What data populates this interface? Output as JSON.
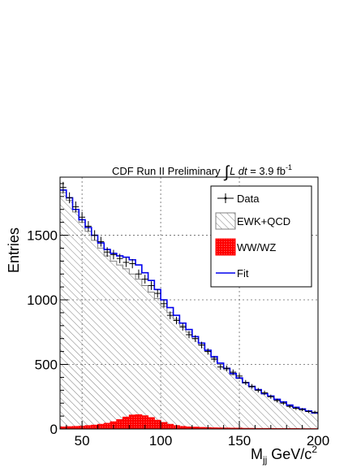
{
  "chart_data": {
    "type": "line",
    "title": {
      "prefix": "CDF Run II Preliminary",
      "integral": "∫",
      "expr": "L dt",
      "value": " = 3.9 fb",
      "exp": "-1"
    },
    "xlabel": {
      "main": "M",
      "sub": "jj",
      "unit": " GeV/c",
      "sup": "2"
    },
    "ylabel": "Entries",
    "xlim": [
      36,
      200
    ],
    "ylim": [
      0,
      1950
    ],
    "xticks": [
      50,
      100,
      150,
      200
    ],
    "yticks": [
      0,
      500,
      1000,
      1500
    ],
    "grid": true,
    "legend_position": "top-right",
    "bin_edges": [
      36,
      40,
      44,
      48,
      52,
      56,
      60,
      64,
      68,
      72,
      76,
      80,
      84,
      88,
      92,
      96,
      100,
      104,
      108,
      112,
      116,
      120,
      124,
      128,
      132,
      136,
      140,
      144,
      148,
      152,
      156,
      160,
      164,
      168,
      172,
      176,
      180,
      184,
      188,
      192,
      196,
      200
    ],
    "series": [
      {
        "name": "Data",
        "style": "points",
        "color": "#000000",
        "values": [
          1870,
          1790,
          1720,
          1640,
          1570,
          1500,
          1450,
          1370,
          1350,
          1320,
          1290,
          1280,
          1200,
          1160,
          1110,
          1050,
          970,
          880,
          840,
          790,
          730,
          700,
          650,
          600,
          540,
          480,
          470,
          440,
          410,
          360,
          330,
          300,
          280,
          250,
          220,
          200,
          175,
          160,
          150,
          135,
          130
        ]
      },
      {
        "name": "EWK+QCD",
        "style": "hatched",
        "color": "#808080",
        "values": [
          1830,
          1770,
          1680,
          1600,
          1530,
          1460,
          1400,
          1340,
          1300,
          1270,
          1240,
          1200,
          1160,
          1110,
          1060,
          1010,
          950,
          900,
          850,
          800,
          750,
          700,
          650,
          600,
          550,
          500,
          460,
          420,
          390,
          355,
          325,
          300,
          270,
          250,
          225,
          205,
          180,
          165,
          150,
          135,
          120
        ]
      },
      {
        "name": "WW/WZ",
        "style": "filled",
        "color": "#ff0000",
        "values": [
          16,
          18,
          20,
          22,
          26,
          30,
          36,
          44,
          56,
          72,
          92,
          108,
          110,
          102,
          88,
          68,
          50,
          36,
          26,
          20,
          16,
          14,
          12,
          10,
          9,
          8,
          7,
          6,
          6,
          5,
          5,
          4,
          4,
          4,
          3,
          3,
          3,
          3,
          2,
          2,
          2
        ]
      },
      {
        "name": "Fit",
        "style": "step",
        "color": "#0000ee",
        "values": [
          1850,
          1790,
          1700,
          1620,
          1560,
          1500,
          1440,
          1390,
          1360,
          1340,
          1330,
          1310,
          1270,
          1210,
          1150,
          1080,
          1000,
          940,
          880,
          820,
          770,
          715,
          665,
          610,
          560,
          510,
          470,
          430,
          395,
          360,
          330,
          305,
          275,
          255,
          230,
          210,
          185,
          168,
          155,
          140,
          125
        ]
      }
    ]
  }
}
